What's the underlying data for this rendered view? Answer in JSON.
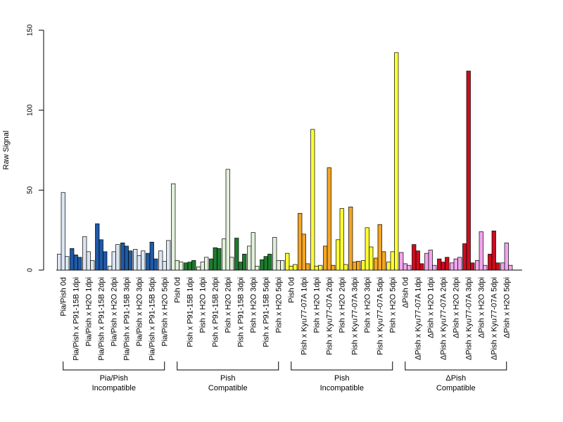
{
  "chart_data": {
    "type": "bar",
    "ylabel": "Raw Signal",
    "xlabel": "",
    "ylim": [
      0,
      150
    ],
    "yticks": [
      0,
      50,
      100,
      150
    ],
    "grid": false,
    "legend": "none",
    "categories": [
      "Pia/Pish 0d",
      "Pia/Pish x P91-15B 1dpi",
      "Pia/Pish x H2O 1dpi",
      "Pia/Pish x P91-15B 2dpi",
      "Pia/Pish x H2O 2dpi",
      "Pia/Pish x P91-15B 3dpi",
      "Pia/Pish x H2O 3dpi",
      "Pia/Pish x P91-15B 5dpi",
      "Pia/Pish x H2O 5dpi",
      "Pish 0d",
      "Pish x P91-15B 1dpi",
      "Pish x H2O 1dpi",
      "Pish x P91-15B 2dpi",
      "Pish x H2O 2dpi",
      "Pish x P91-15B 3dpi",
      "Pish x H2O 3dpi",
      "Pish x P91-15B 5dpi",
      "Pish x H2O 5dpi",
      "Pish 0d",
      "Pish x Kyu77-07A 1dpi",
      "Pish x H2O 1dpi",
      "Pish x Kyu77-07A 2dpi",
      "Pish x H2O 2dpi",
      "Pish x Kyu77-07A 3dpi",
      "Pish x H2O 3dpi",
      "Pish x Kyu77-07A 5dpi",
      "Pish x H2O 5dpi",
      "ΔPish 0d",
      "ΔPish x Kyu77-07A 1dpi",
      "ΔPish x H2O 1dpi",
      "ΔPish x Kyu77-07A 2dpi",
      "ΔPish x H2O 2dpi",
      "ΔPish x Kyu77-07A 3dpi",
      "ΔPish x H2O 3dpi",
      "ΔPish x Kyu77-07A 5dpi",
      "ΔPish x H2O 5dpi"
    ],
    "bar_colors": [
      "#dce6f2",
      "#1f5aa6",
      "#dce6f2",
      "#1f5aa6",
      "#dce6f2",
      "#1f5aa6",
      "#dce6f2",
      "#1f5aa6",
      "#dce6f2",
      "#e3f0dc",
      "#1e7a2e",
      "#e3f0dc",
      "#1e7a2e",
      "#e3f0dc",
      "#1e7a2e",
      "#e3f0dc",
      "#1e7a2e",
      "#e3f0dc",
      "#ffff33",
      "#f5a623",
      "#ffff33",
      "#f5a623",
      "#ffff33",
      "#f5a623",
      "#ffff33",
      "#f5a623",
      "#ffff33",
      "#f2a6ee",
      "#cc0c1e",
      "#f2a6ee",
      "#cc0c1e",
      "#f2a6ee",
      "#cc0c1e",
      "#f2a6ee",
      "#cc0c1e",
      "#f2a6ee"
    ],
    "values": [
      [
        10,
        48.5,
        8.5
      ],
      [
        13.5,
        9.5,
        8
      ],
      [
        21,
        11.5,
        6
      ],
      [
        29,
        19,
        11.5
      ],
      [
        2.5,
        11.5,
        16
      ],
      [
        17,
        15,
        12
      ],
      [
        13,
        9,
        12
      ],
      [
        10.5,
        17.5,
        7
      ],
      [
        12,
        5.5,
        18.5
      ],
      [
        54,
        6,
        5
      ],
      [
        4.5,
        5,
        6
      ],
      [
        2,
        5,
        8
      ],
      [
        7,
        14,
        13.5
      ],
      [
        19.5,
        63,
        8
      ],
      [
        20,
        5,
        10
      ],
      [
        15,
        23.5,
        2.5
      ],
      [
        6.5,
        8.5,
        10
      ],
      [
        20.5,
        6,
        6
      ],
      [
        10.5,
        2.5,
        3.5
      ],
      [
        35.5,
        22.5,
        4
      ],
      [
        88,
        2.5,
        3
      ],
      [
        15,
        64,
        3
      ],
      [
        19,
        38.5,
        3.5
      ],
      [
        39.5,
        5,
        5.5
      ],
      [
        6,
        26.5,
        14.5
      ],
      [
        7.5,
        28.5,
        11.5
      ],
      [
        5,
        11.5,
        136
      ],
      [
        11,
        4,
        3
      ],
      [
        16,
        12,
        4
      ],
      [
        10.5,
        12.5,
        3
      ],
      [
        7,
        5,
        8
      ],
      [
        4.5,
        7,
        8
      ],
      [
        16.5,
        124.5,
        4.5
      ],
      [
        6,
        24,
        3
      ],
      [
        10,
        24.5,
        4.5
      ],
      [
        4.5,
        17,
        3
      ]
    ],
    "groups": [
      {
        "line1": "Pia/Pish",
        "line2": "Incompatible",
        "from": 0,
        "to": 8
      },
      {
        "line1": "Pish",
        "line2": "Compatible",
        "from": 9,
        "to": 17
      },
      {
        "line1": "Pish",
        "line2": "Incompatible",
        "from": 18,
        "to": 26
      },
      {
        "line1": "ΔPish",
        "line2": "Compatible",
        "from": 27,
        "to": 35
      }
    ]
  }
}
